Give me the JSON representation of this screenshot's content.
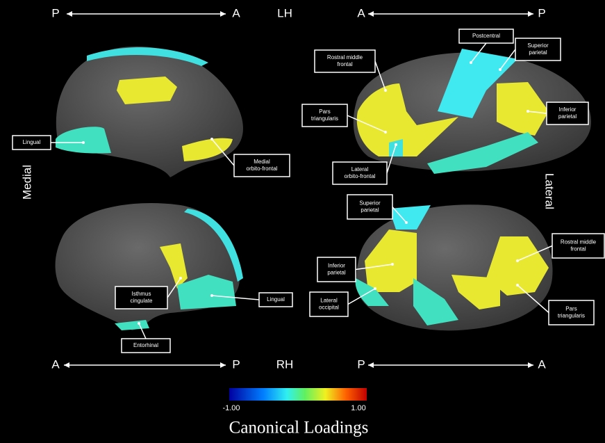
{
  "orientation": {
    "top_left": {
      "from": "P",
      "to": "A"
    },
    "top_center": "LH",
    "top_right": {
      "from": "A",
      "to": "P"
    },
    "bottom_left": {
      "from": "A",
      "to": "P"
    },
    "bottom_center": "RH",
    "bottom_right": {
      "from": "P",
      "to": "A"
    }
  },
  "side_labels": {
    "left": "Medial",
    "right": "Lateral"
  },
  "panels": [
    {
      "labels": [
        {
          "lines": [
            "Lingual"
          ]
        },
        {
          "lines": [
            "Medial",
            "orbito-frontal"
          ]
        }
      ]
    },
    {
      "labels": [
        {
          "lines": [
            "Postcentral"
          ]
        },
        {
          "lines": [
            "Superior",
            "parietal"
          ]
        },
        {
          "lines": [
            "Rostral middle",
            "frontal"
          ]
        },
        {
          "lines": [
            "Pars",
            "triangularis"
          ]
        },
        {
          "lines": [
            "Inferior",
            "parietal"
          ]
        },
        {
          "lines": [
            "Lateral",
            "orbito-frontal"
          ]
        }
      ]
    },
    {
      "labels": [
        {
          "lines": [
            "Isthmus",
            "cingulate"
          ]
        },
        {
          "lines": [
            "Lingual"
          ]
        },
        {
          "lines": [
            "Entorhinal"
          ]
        }
      ]
    },
    {
      "labels": [
        {
          "lines": [
            "Superior",
            "parietal"
          ]
        },
        {
          "lines": [
            "Inferior",
            "parietal"
          ]
        },
        {
          "lines": [
            "Lateral",
            "occipital"
          ]
        },
        {
          "lines": [
            "Rostral middle",
            "frontal"
          ]
        },
        {
          "lines": [
            "Pars",
            "triangularis"
          ]
        }
      ]
    }
  ],
  "colorbar": {
    "min_label": "-1.00",
    "max_label": "1.00",
    "title": "Canonical Loadings"
  }
}
